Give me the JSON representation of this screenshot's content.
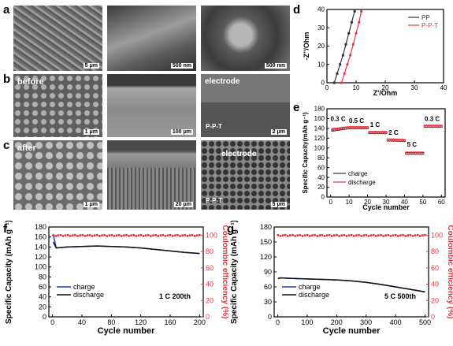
{
  "panels": {
    "a": "a",
    "b": "b",
    "c": "c",
    "d": "d",
    "e": "e",
    "f": "f",
    "g": "g"
  },
  "sem": {
    "a1_scale": "5 μm",
    "a2_scale": "500 nm",
    "a3_scale": "500 nm",
    "b1_label": "before",
    "b1_scale": "1 μm",
    "b2_scale": "100 μm",
    "b3_label": "electrode",
    "b3_sub": "P-P-T",
    "b3_scale": "2 μm",
    "c1_label": "after",
    "c1_scale": "1 μm",
    "c2_scale": "20 μm",
    "c3_label": "electrode",
    "c3_sub": "P-P-T",
    "c3_scale": "5 μm"
  },
  "chart_data": [
    {
      "id": "d",
      "type": "line",
      "xlabel": "Z'/Ohm",
      "ylabel": "-Z''/Ohm",
      "xlim": [
        0,
        40
      ],
      "ylim": [
        0,
        40
      ],
      "xticks": [
        0,
        10,
        20,
        30,
        40
      ],
      "yticks": [
        0,
        10,
        20,
        30,
        40
      ],
      "legend": "top-right",
      "series": [
        {
          "name": "PP",
          "color": "#333333",
          "x": [
            2.5,
            3.5,
            4.5,
            5.5,
            6.5,
            7.5,
            8.5,
            9.5
          ],
          "y": [
            0,
            5,
            10,
            15,
            21,
            27,
            33,
            39
          ]
        },
        {
          "name": "P-P-T",
          "color": "#e8313f",
          "x": [
            5,
            6,
            7,
            8,
            9,
            10,
            11,
            11.8
          ],
          "y": [
            0,
            5,
            10,
            15,
            21,
            27,
            33,
            39
          ]
        }
      ]
    },
    {
      "id": "e",
      "type": "scatter",
      "xlabel": "Cycle number",
      "ylabel": "Specific Capacity(mAh g⁻¹)",
      "xlim": [
        -2,
        62
      ],
      "ylim": [
        0,
        180
      ],
      "xticks": [
        0,
        10,
        20,
        30,
        40,
        50,
        60
      ],
      "yticks": [
        0,
        20,
        40,
        60,
        80,
        100,
        120,
        140,
        160,
        180
      ],
      "legend": "lower-left",
      "rate_labels": [
        "0.3 C",
        "0.5 C",
        "1 C",
        "2 C",
        "5 C",
        "0.3 C"
      ],
      "rate_positions": [
        [
          4,
          155
        ],
        [
          14,
          151
        ],
        [
          24,
          143
        ],
        [
          34,
          127
        ],
        [
          44,
          103
        ],
        [
          55,
          155
        ]
      ],
      "series": [
        {
          "name": "charge",
          "color": "#333333",
          "segments": [
            [
              1,
              10,
              136,
              141
            ],
            [
              11,
              20,
              141,
              141
            ],
            [
              21,
              30,
              131,
              131
            ],
            [
              31,
              40,
              116,
              115
            ],
            [
              41,
              50,
              89,
              89
            ],
            [
              51,
              60,
              144,
              144
            ]
          ]
        },
        {
          "name": "discharge",
          "color": "#e8313f",
          "segments": [
            [
              1,
              10,
              138,
              142
            ],
            [
              11,
              20,
              142,
              142
            ],
            [
              21,
              30,
              132,
              132
            ],
            [
              31,
              40,
              117,
              116
            ],
            [
              41,
              50,
              90,
              90
            ],
            [
              51,
              60,
              145,
              145
            ]
          ]
        }
      ]
    },
    {
      "id": "f",
      "type": "line",
      "xlabel": "Cycle number",
      "ylabel": "Specific Capacity (mAh g⁻¹)",
      "y2label": "Coulombic efficiency (%)",
      "xlim": [
        -5,
        205
      ],
      "ylim": [
        0,
        180
      ],
      "y2lim": [
        0,
        110
      ],
      "xticks": [
        0,
        40,
        80,
        120,
        160,
        200
      ],
      "yticks": [
        0,
        20,
        40,
        60,
        80,
        100,
        120,
        140,
        160,
        180
      ],
      "y2ticks": [
        0,
        20,
        40,
        60,
        80,
        100
      ],
      "annotation": "1 C  200th",
      "legend": "lower-left",
      "series": [
        {
          "name": "charge",
          "color": "#1a3ccc",
          "x": [
            1,
            5,
            20,
            40,
            60,
            80,
            100,
            120,
            140,
            160,
            180,
            200
          ],
          "y": [
            165,
            138,
            140,
            141,
            142,
            141,
            140,
            138,
            135,
            132,
            129,
            127
          ]
        },
        {
          "name": "discharge",
          "color": "#111111",
          "x": [
            1,
            5,
            20,
            40,
            60,
            80,
            100,
            120,
            140,
            160,
            180,
            200
          ],
          "y": [
            150,
            138,
            140,
            141,
            142,
            141,
            140,
            138,
            135,
            132,
            129,
            127
          ]
        },
        {
          "name": "efficiency",
          "color": "#e8313f",
          "axis": "right",
          "x_range": [
            1,
            200
          ],
          "y": 99.5
        }
      ]
    },
    {
      "id": "g",
      "type": "line",
      "xlabel": "Cycle number",
      "ylabel": "Specific Capacity (mAh g⁻¹)",
      "y2label": "Coulombic efficiency (%)",
      "xlim": [
        -12,
        512
      ],
      "ylim": [
        0,
        180
      ],
      "y2lim": [
        0,
        110
      ],
      "xticks": [
        0,
        100,
        200,
        300,
        400,
        500
      ],
      "yticks": [
        0,
        30,
        60,
        90,
        120,
        150,
        180
      ],
      "y2ticks": [
        0,
        20,
        40,
        60,
        80,
        100
      ],
      "annotation": "5 C  500th",
      "legend": "lower-left",
      "series": [
        {
          "name": "charge",
          "color": "#1a3ccc",
          "x": [
            1,
            10,
            50,
            100,
            150,
            200,
            250,
            300,
            350,
            400,
            450,
            500
          ],
          "y": [
            77,
            78,
            77,
            76,
            75,
            74,
            72,
            69,
            65,
            60,
            55,
            50
          ]
        },
        {
          "name": "discharge",
          "color": "#111111",
          "x": [
            1,
            10,
            50,
            100,
            150,
            200,
            250,
            300,
            350,
            400,
            450,
            500
          ],
          "y": [
            77,
            78,
            77,
            76,
            75,
            74,
            72,
            69,
            65,
            60,
            55,
            50
          ]
        },
        {
          "name": "efficiency",
          "color": "#e8313f",
          "axis": "right",
          "x_range": [
            1,
            500
          ],
          "y": 99.5
        }
      ]
    }
  ]
}
